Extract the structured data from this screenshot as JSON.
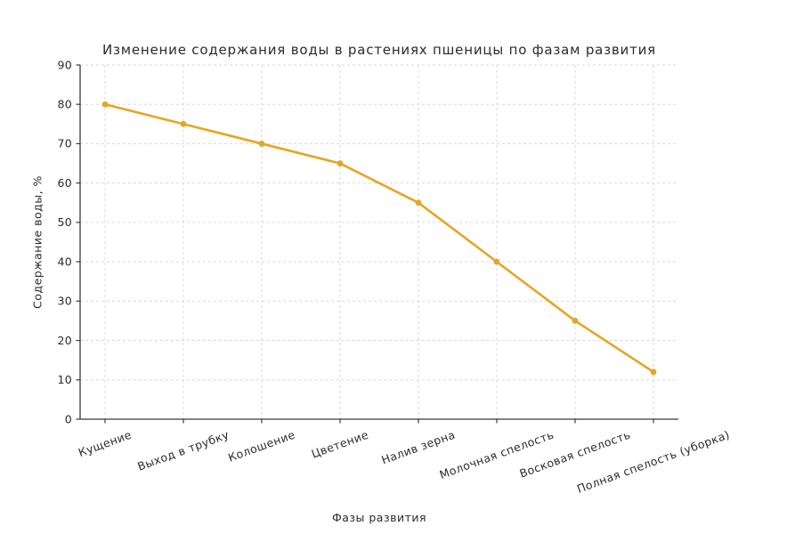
{
  "chart_data": {
    "type": "line",
    "title": "Изменение содержания воды в растениях пшеницы по фазам развития",
    "xlabel": "Фазы развития",
    "ylabel": "Содержание воды, %",
    "categories": [
      "Кущение",
      "Выход в трубку",
      "Колошение",
      "Цветение",
      "Налив зерна",
      "Молочная спелость",
      "Восковая спелость",
      "Полная спелость (уборка)"
    ],
    "values": [
      80,
      75,
      70,
      65,
      55,
      40,
      25,
      12
    ],
    "ylim": [
      0,
      90
    ],
    "ytick_step": 10,
    "grid": "both, dashed",
    "legend": "none",
    "marker": "circle",
    "x_tick_rotation_deg": 20
  },
  "colors": {
    "background": "#FFFFFF",
    "line": "#E7A524",
    "marker": "#E7A524",
    "grid": "#D9D9D9",
    "axis": "#3A3A3A",
    "text": "#2B2B2B"
  }
}
